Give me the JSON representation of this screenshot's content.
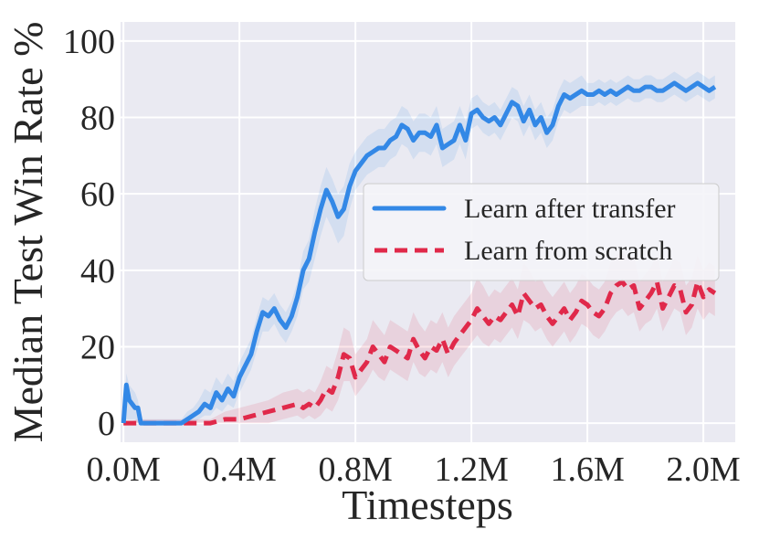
{
  "chart_data": {
    "type": "line",
    "xlabel": "Timesteps",
    "ylabel": "Median Test Win Rate %",
    "xlim": [
      -0.01,
      2.11
    ],
    "ylim": [
      -5,
      105
    ],
    "x_ticks": [
      0.0,
      0.4,
      0.8,
      1.2,
      1.6,
      2.0
    ],
    "x_tick_labels": [
      "0.0M",
      "0.4M",
      "0.8M",
      "1.2M",
      "1.6M",
      "2.0M"
    ],
    "y_ticks": [
      0,
      20,
      40,
      60,
      80,
      100
    ],
    "y_tick_labels": [
      "0",
      "20",
      "40",
      "60",
      "80",
      "100"
    ],
    "grid": true,
    "background": "#eaeaf2",
    "legend_position": "center-right",
    "series": [
      {
        "name": "Learn after transfer",
        "color": "#3388e6",
        "style": "solid",
        "x": [
          0.0,
          0.01,
          0.02,
          0.03,
          0.04,
          0.05,
          0.06,
          0.07,
          0.1,
          0.15,
          0.2,
          0.22,
          0.24,
          0.26,
          0.28,
          0.3,
          0.32,
          0.34,
          0.36,
          0.38,
          0.4,
          0.42,
          0.44,
          0.46,
          0.48,
          0.5,
          0.52,
          0.54,
          0.56,
          0.58,
          0.6,
          0.62,
          0.64,
          0.66,
          0.68,
          0.7,
          0.72,
          0.74,
          0.76,
          0.78,
          0.8,
          0.82,
          0.84,
          0.86,
          0.88,
          0.9,
          0.92,
          0.94,
          0.96,
          0.98,
          1.0,
          1.02,
          1.04,
          1.06,
          1.08,
          1.1,
          1.12,
          1.14,
          1.16,
          1.18,
          1.2,
          1.22,
          1.24,
          1.26,
          1.28,
          1.3,
          1.32,
          1.34,
          1.36,
          1.38,
          1.4,
          1.42,
          1.44,
          1.46,
          1.48,
          1.5,
          1.52,
          1.54,
          1.56,
          1.58,
          1.6,
          1.62,
          1.64,
          1.66,
          1.68,
          1.7,
          1.72,
          1.74,
          1.76,
          1.78,
          1.8,
          1.82,
          1.84,
          1.86,
          1.88,
          1.9,
          1.92,
          1.94,
          1.96,
          1.98,
          2.0,
          2.02,
          2.04
        ],
        "y": [
          0,
          10,
          6,
          5,
          4,
          4,
          0,
          0,
          0,
          0,
          0,
          1,
          2,
          3,
          5,
          4,
          8,
          6,
          9,
          7,
          12,
          15,
          18,
          24,
          29,
          28,
          30,
          27,
          25,
          28,
          33,
          40,
          43,
          50,
          56,
          61,
          58,
          54,
          56,
          62,
          66,
          68,
          70,
          71,
          72,
          72,
          74,
          75,
          78,
          77,
          74,
          76,
          76,
          75,
          78,
          72,
          73,
          74,
          78,
          74,
          81,
          82,
          80,
          79,
          80,
          78,
          81,
          84,
          83,
          79,
          82,
          78,
          80,
          76,
          78,
          83,
          86,
          85,
          86,
          87,
          86,
          86,
          87,
          86,
          87,
          86,
          87,
          88,
          87,
          87,
          88,
          88,
          87,
          87,
          88,
          89,
          88,
          87,
          88,
          89,
          88,
          87,
          88
        ],
        "lower": [
          0,
          1,
          1,
          1,
          1,
          0,
          0,
          0,
          0,
          0,
          0,
          0,
          0,
          1,
          2,
          2,
          4,
          3,
          5,
          4,
          8,
          11,
          14,
          19,
          24,
          24,
          26,
          23,
          21,
          24,
          28,
          35,
          37,
          43,
          49,
          54,
          51,
          47,
          49,
          56,
          61,
          63,
          65,
          66,
          67,
          67,
          69,
          70,
          73,
          72,
          69,
          71,
          71,
          70,
          73,
          67,
          68,
          69,
          73,
          69,
          77,
          78,
          76,
          75,
          76,
          74,
          77,
          80,
          79,
          75,
          78,
          74,
          76,
          72,
          74,
          79,
          82,
          81,
          82,
          83,
          83,
          83,
          84,
          83,
          84,
          83,
          84,
          85,
          84,
          84,
          85,
          85,
          84,
          84,
          85,
          86,
          85,
          84,
          85,
          86,
          85,
          84,
          85
        ],
        "upper": [
          0,
          13,
          10,
          9,
          8,
          6,
          1,
          1,
          1,
          1,
          1,
          3,
          4,
          6,
          9,
          8,
          12,
          10,
          13,
          11,
          16,
          19,
          22,
          28,
          33,
          32,
          34,
          31,
          29,
          32,
          37,
          45,
          48,
          56,
          62,
          67,
          64,
          60,
          62,
          68,
          71,
          73,
          75,
          76,
          77,
          77,
          79,
          80,
          83,
          82,
          79,
          81,
          81,
          80,
          83,
          77,
          78,
          79,
          83,
          79,
          85,
          86,
          84,
          83,
          84,
          82,
          85,
          88,
          87,
          83,
          86,
          82,
          84,
          80,
          82,
          87,
          90,
          89,
          90,
          91,
          89,
          89,
          90,
          89,
          90,
          89,
          90,
          91,
          90,
          90,
          91,
          91,
          90,
          90,
          91,
          92,
          91,
          90,
          91,
          92,
          91,
          90,
          91
        ]
      },
      {
        "name": "Learn from scratch",
        "color": "#e0294a",
        "style": "dashed",
        "x": [
          0.0,
          0.05,
          0.1,
          0.15,
          0.2,
          0.25,
          0.3,
          0.35,
          0.4,
          0.45,
          0.5,
          0.55,
          0.6,
          0.62,
          0.64,
          0.66,
          0.68,
          0.7,
          0.72,
          0.74,
          0.76,
          0.78,
          0.8,
          0.82,
          0.84,
          0.86,
          0.88,
          0.9,
          0.92,
          0.94,
          0.96,
          0.98,
          1.0,
          1.02,
          1.04,
          1.06,
          1.08,
          1.1,
          1.12,
          1.14,
          1.16,
          1.18,
          1.2,
          1.22,
          1.24,
          1.26,
          1.28,
          1.3,
          1.32,
          1.34,
          1.36,
          1.38,
          1.4,
          1.42,
          1.44,
          1.46,
          1.48,
          1.5,
          1.52,
          1.54,
          1.56,
          1.58,
          1.6,
          1.62,
          1.64,
          1.66,
          1.68,
          1.7,
          1.72,
          1.74,
          1.76,
          1.78,
          1.8,
          1.82,
          1.84,
          1.86,
          1.88,
          1.9,
          1.92,
          1.94,
          1.96,
          1.98,
          2.0,
          2.02,
          2.04
        ],
        "y": [
          0,
          0,
          0,
          0,
          0,
          0,
          0,
          1,
          1,
          2,
          3,
          4,
          5,
          4,
          5,
          4,
          6,
          9,
          8,
          12,
          18,
          17,
          12,
          14,
          16,
          20,
          18,
          16,
          20,
          19,
          18,
          17,
          22,
          19,
          17,
          20,
          19,
          22,
          18,
          21,
          23,
          25,
          27,
          30,
          28,
          26,
          28,
          27,
          29,
          31,
          28,
          34,
          32,
          30,
          31,
          28,
          26,
          28,
          30,
          27,
          29,
          32,
          31,
          29,
          28,
          30,
          34,
          36,
          37,
          35,
          36,
          30,
          32,
          34,
          37,
          30,
          33,
          36,
          35,
          29,
          31,
          37,
          33,
          35,
          34
        ],
        "lower": [
          0,
          0,
          0,
          0,
          0,
          0,
          0,
          0,
          0,
          0,
          0,
          1,
          2,
          1,
          2,
          1,
          2,
          4,
          3,
          6,
          11,
          11,
          7,
          9,
          11,
          14,
          12,
          11,
          14,
          13,
          12,
          11,
          16,
          13,
          12,
          14,
          13,
          16,
          12,
          15,
          17,
          19,
          21,
          23,
          21,
          20,
          22,
          21,
          23,
          25,
          22,
          27,
          26,
          24,
          25,
          22,
          20,
          22,
          24,
          21,
          23,
          26,
          25,
          23,
          22,
          24,
          27,
          29,
          30,
          28,
          29,
          24,
          26,
          27,
          30,
          24,
          27,
          30,
          29,
          23,
          25,
          30,
          27,
          29,
          28
        ],
        "upper": [
          0,
          1,
          1,
          1,
          1,
          1,
          1,
          3,
          4,
          5,
          6,
          8,
          9,
          8,
          9,
          8,
          11,
          15,
          14,
          19,
          25,
          24,
          18,
          20,
          22,
          27,
          25,
          23,
          27,
          26,
          25,
          24,
          29,
          26,
          24,
          27,
          26,
          29,
          25,
          28,
          30,
          32,
          34,
          38,
          36,
          33,
          35,
          34,
          36,
          38,
          35,
          42,
          40,
          37,
          38,
          35,
          33,
          35,
          37,
          34,
          36,
          39,
          38,
          36,
          35,
          37,
          42,
          44,
          45,
          43,
          44,
          37,
          39,
          41,
          44,
          37,
          40,
          43,
          42,
          36,
          38,
          44,
          40,
          42,
          41
        ]
      }
    ]
  }
}
